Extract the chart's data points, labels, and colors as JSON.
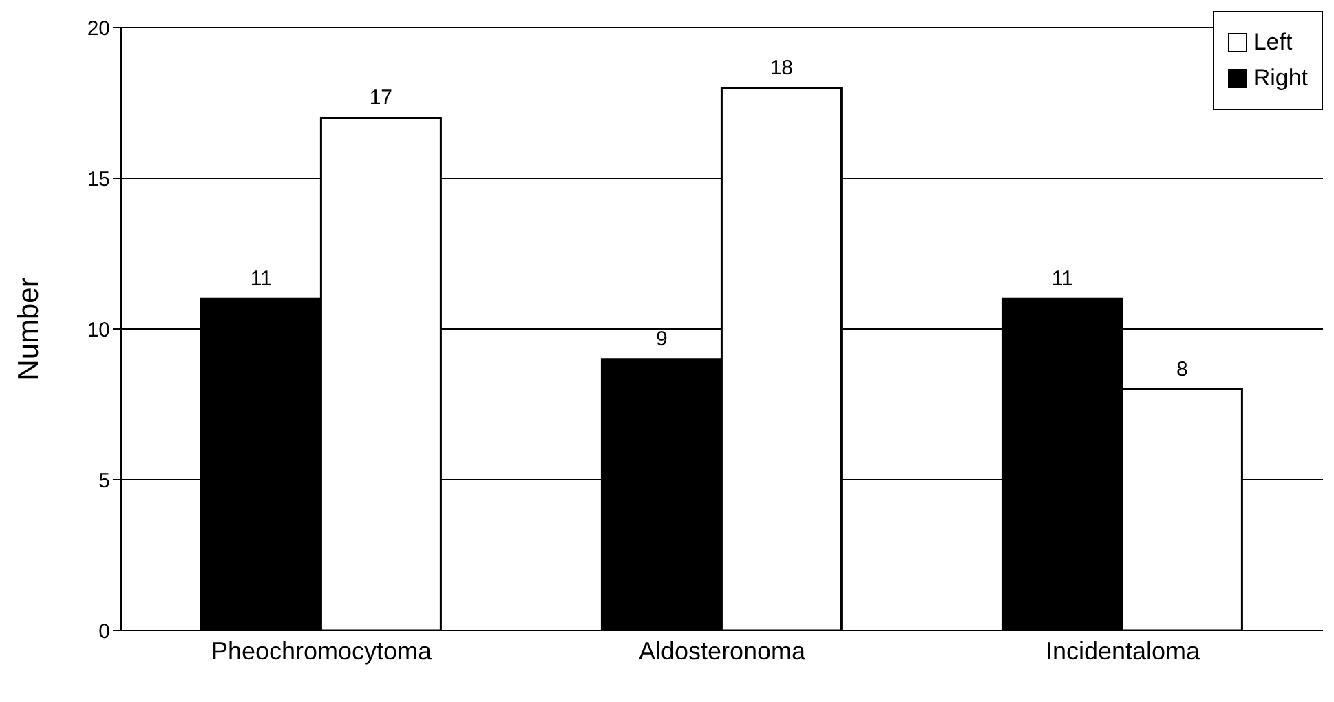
{
  "chart_data": {
    "type": "bar",
    "ylabel": "Number",
    "categories": [
      "Pheochromocytoma",
      "Aldosteronoma",
      "Incidentaloma"
    ],
    "series": [
      {
        "name": "Right",
        "color": "#000000",
        "values": [
          11,
          9,
          11
        ]
      },
      {
        "name": "Left",
        "color": "#ffffff",
        "values": [
          17,
          18,
          8
        ]
      }
    ],
    "ylim": [
      0,
      20
    ],
    "yticks": [
      0,
      5,
      10,
      15,
      20
    ],
    "grid": "y",
    "legend": "top right",
    "data_labels": true
  }
}
